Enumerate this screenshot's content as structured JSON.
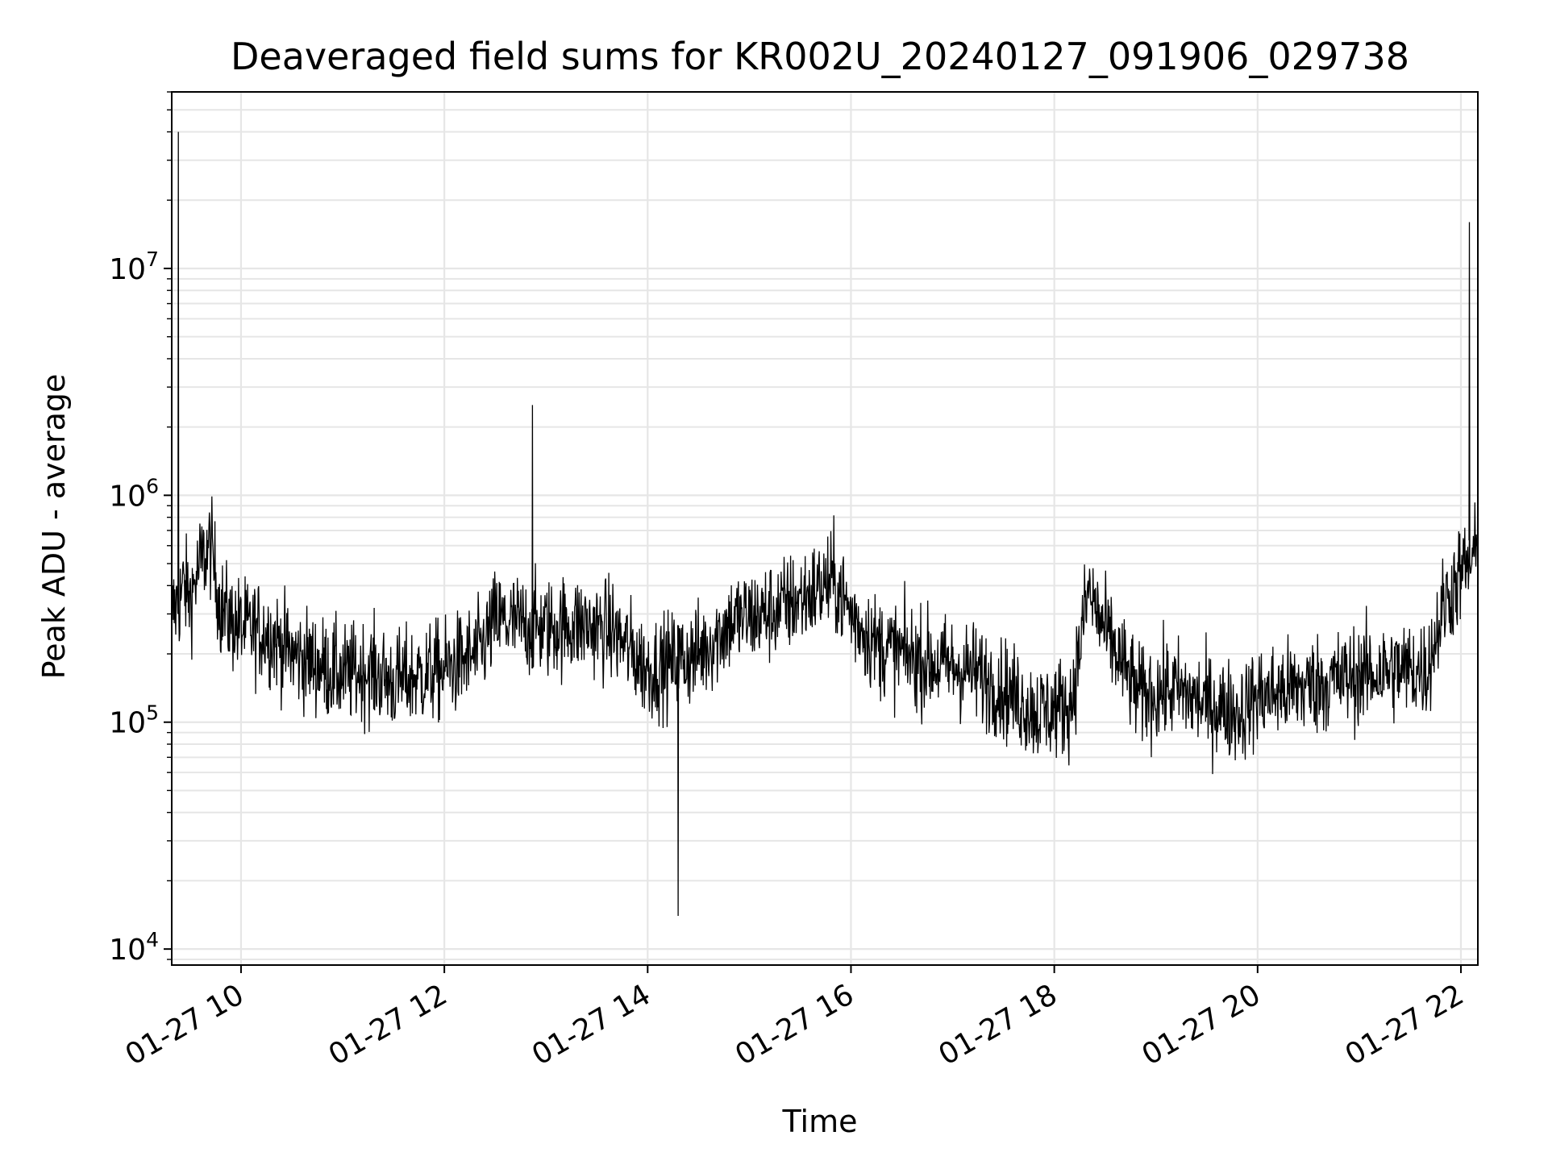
{
  "chart_data": {
    "type": "line",
    "title": "Deaveraged field sums for KR002U_20240127_091906_029738",
    "xlabel": "Time",
    "ylabel": "Peak ADU - average",
    "xlim": [
      "2024-01-27 09:19:06",
      "2024-01-27 22:10:00"
    ],
    "ylim": [
      8500,
      60000000
    ],
    "yscale": "log",
    "grid": true,
    "x_ticks": [
      "01-27 10",
      "01-27 12",
      "01-27 14",
      "01-27 16",
      "01-27 18",
      "01-27 20",
      "01-27 22"
    ],
    "y_ticks": [
      {
        "base": "10",
        "exp": "4"
      },
      {
        "base": "10",
        "exp": "5"
      },
      {
        "base": "10",
        "exp": "6"
      },
      {
        "base": "10",
        "exp": "7"
      }
    ],
    "series_color": "#000000",
    "grid_color": "#e6e6e6",
    "series": [
      {
        "x": [
          "2024-01-27 09:19:06",
          "2024-01-27 09:23:00",
          "2024-01-27 09:24:00",
          "2024-01-27 09:26:00",
          "2024-01-27 09:30:00",
          "2024-01-27 09:36:00",
          "2024-01-27 09:42:00",
          "2024-01-27 09:48:00",
          "2024-01-27 09:54:00",
          "2024-01-27 10:00:00",
          "2024-01-27 10:15:00",
          "2024-01-27 10:30:00",
          "2024-01-27 10:45:00",
          "2024-01-27 11:00:00",
          "2024-01-27 11:15:00",
          "2024-01-27 11:30:00",
          "2024-01-27 11:45:00",
          "2024-01-27 12:00:00",
          "2024-01-27 12:20:00",
          "2024-01-27 12:30:00",
          "2024-01-27 12:45:00",
          "2024-01-27 12:52:00",
          "2024-01-27 13:00:00",
          "2024-01-27 13:20:00",
          "2024-01-27 13:40:00",
          "2024-01-27 14:00:00",
          "2024-01-27 14:18:00",
          "2024-01-27 14:30:00",
          "2024-01-27 14:50:00",
          "2024-01-27 15:10:00",
          "2024-01-27 15:30:00",
          "2024-01-27 15:50:00",
          "2024-01-27 16:00:00",
          "2024-01-27 16:15:00",
          "2024-01-27 16:30:00",
          "2024-01-27 16:50:00",
          "2024-01-27 17:10:00",
          "2024-01-27 17:30:00",
          "2024-01-27 17:50:00",
          "2024-01-27 18:10:00",
          "2024-01-27 18:20:00",
          "2024-01-27 18:30:00",
          "2024-01-27 18:50:00",
          "2024-01-27 19:10:00",
          "2024-01-27 19:30:00",
          "2024-01-27 19:50:00",
          "2024-01-27 20:00:00",
          "2024-01-27 20:20:00",
          "2024-01-27 20:40:00",
          "2024-01-27 21:00:00",
          "2024-01-27 21:20:00",
          "2024-01-27 21:40:00",
          "2024-01-27 21:50:00",
          "2024-01-27 22:00:00",
          "2024-01-27 22:05:00",
          "2024-01-27 22:10:00"
        ],
        "y": [
          300000,
          40000000,
          350000,
          400000,
          350000,
          500000,
          600000,
          320000,
          280000,
          260000,
          250000,
          200000,
          180000,
          160000,
          170000,
          150000,
          160000,
          170000,
          200000,
          280000,
          270000,
          2500000,
          260000,
          270000,
          250000,
          170000,
          14000,
          200000,
          280000,
          300000,
          350000,
          420000,
          300000,
          220000,
          200000,
          180000,
          170000,
          140000,
          110000,
          120000,
          380000,
          250000,
          130000,
          140000,
          120000,
          110000,
          130000,
          140000,
          150000,
          160000,
          170000,
          170000,
          330000,
          450000,
          16000000,
          550000
        ]
      }
    ]
  }
}
